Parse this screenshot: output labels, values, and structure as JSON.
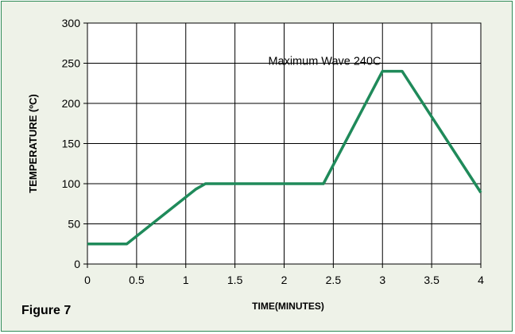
{
  "figure": {
    "caption": "Figure 7"
  },
  "colors": {
    "line": "#1f8a5a",
    "panel": "#eef2e8",
    "plot_bg": "#ffffff",
    "grid": "#000000",
    "border": "#2e8b57"
  },
  "chart_data": {
    "type": "line",
    "title": "",
    "xlabel": "TIME(MINUTES)",
    "ylabel": "TEMPERATURE (ºC)",
    "xlim": [
      0,
      4
    ],
    "ylim": [
      0,
      300
    ],
    "x_ticks": [
      0,
      0.5,
      1,
      1.5,
      2,
      2.5,
      3,
      3.5,
      4
    ],
    "x_tick_labels": [
      "0",
      "0.5",
      "1",
      "1.5",
      "2",
      "2.5",
      "3",
      "3.5",
      "4"
    ],
    "y_ticks": [
      0,
      50,
      100,
      150,
      200,
      250,
      300
    ],
    "y_tick_labels": [
      "0",
      "50",
      "100",
      "150",
      "200",
      "250",
      "300"
    ],
    "grid": true,
    "series": [
      {
        "x": [
          0,
          0.4,
          1.1,
          1.2,
          2.4,
          3.0,
          3.2,
          4.0
        ],
        "y": [
          25,
          25,
          93,
          100,
          100,
          240,
          240,
          89
        ]
      }
    ],
    "annotations": [
      {
        "text": "Maximum Wave 240C",
        "x": 3.05,
        "y": 253
      }
    ]
  }
}
